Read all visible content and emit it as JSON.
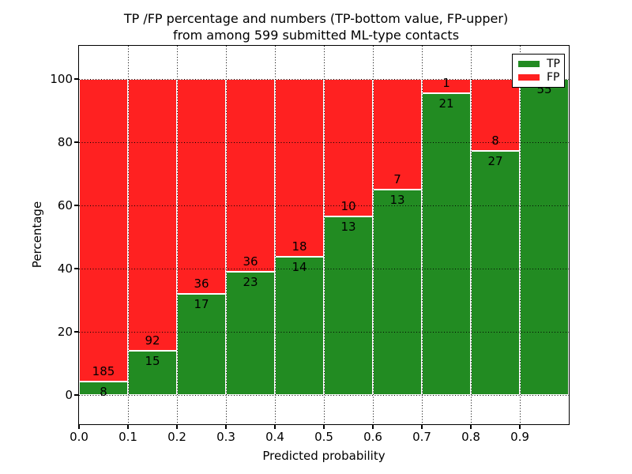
{
  "figure": {
    "title_line1": "TP /FP percentage and numbers (TP-bottom value, FP-upper)",
    "title_line2": "from among 599 submitted ML-type contacts",
    "xlabel": "Predicted probability",
    "ylabel": "Percentage"
  },
  "chart_data": {
    "type": "bar",
    "stacked": true,
    "title": "TP /FP percentage and numbers (TP-bottom value, FP-upper) from among 599 submitted ML-type contacts",
    "xlabel": "Predicted probability",
    "ylabel": "Percentage",
    "total_contacts": 599,
    "xlim": [
      0.0,
      1.0
    ],
    "ylim": [
      -9.25,
      110.5
    ],
    "x_ticks": [
      "0.0",
      "0.1",
      "0.2",
      "0.3",
      "0.4",
      "0.5",
      "0.6",
      "0.7",
      "0.8",
      "0.9"
    ],
    "y_ticks": [
      0,
      20,
      40,
      60,
      80,
      100
    ],
    "grid": "dotted black, drawn above bars",
    "legend_position": "upper-right",
    "legend_entries": [
      {
        "label": "TP",
        "color": "#228B22"
      },
      {
        "label": "FP",
        "color": "#FF2121"
      }
    ],
    "series_note": "Each 0.1-wide bin stacks TP% (green, bottom) and FP% (red, top) summing to 100; text labels show raw counts: TP count just below the boundary, FP count just above it.",
    "bins": [
      {
        "x_range": [
          0.0,
          0.1
        ],
        "tp_count": 8,
        "fp_count": 185,
        "tp_pct": 4.1
      },
      {
        "x_range": [
          0.1,
          0.2
        ],
        "tp_count": 15,
        "fp_count": 92,
        "tp_pct": 14.0
      },
      {
        "x_range": [
          0.2,
          0.3
        ],
        "tp_count": 17,
        "fp_count": 36,
        "tp_pct": 32.1
      },
      {
        "x_range": [
          0.3,
          0.4
        ],
        "tp_count": 23,
        "fp_count": 36,
        "tp_pct": 39.0
      },
      {
        "x_range": [
          0.4,
          0.5
        ],
        "tp_count": 14,
        "fp_count": 18,
        "tp_pct": 43.8
      },
      {
        "x_range": [
          0.5,
          0.6
        ],
        "tp_count": 13,
        "fp_count": 10,
        "tp_pct": 56.5
      },
      {
        "x_range": [
          0.6,
          0.7
        ],
        "tp_count": 13,
        "fp_count": 7,
        "tp_pct": 65.0
      },
      {
        "x_range": [
          0.7,
          0.8
        ],
        "tp_count": 21,
        "fp_count": 1,
        "tp_pct": 95.5
      },
      {
        "x_range": [
          0.8,
          0.9
        ],
        "tp_count": 27,
        "fp_count": 8,
        "tp_pct": 77.1
      },
      {
        "x_range": [
          0.9,
          1.0
        ],
        "tp_count": 55,
        "fp_count": 0,
        "tp_pct": 100.0
      }
    ],
    "colors": {
      "tp": "#228B22",
      "fp": "#FF2121",
      "bar_edge": "#FFFFFF",
      "grid": "#000000",
      "text": "#000000",
      "background": "#FFFFFF"
    }
  }
}
